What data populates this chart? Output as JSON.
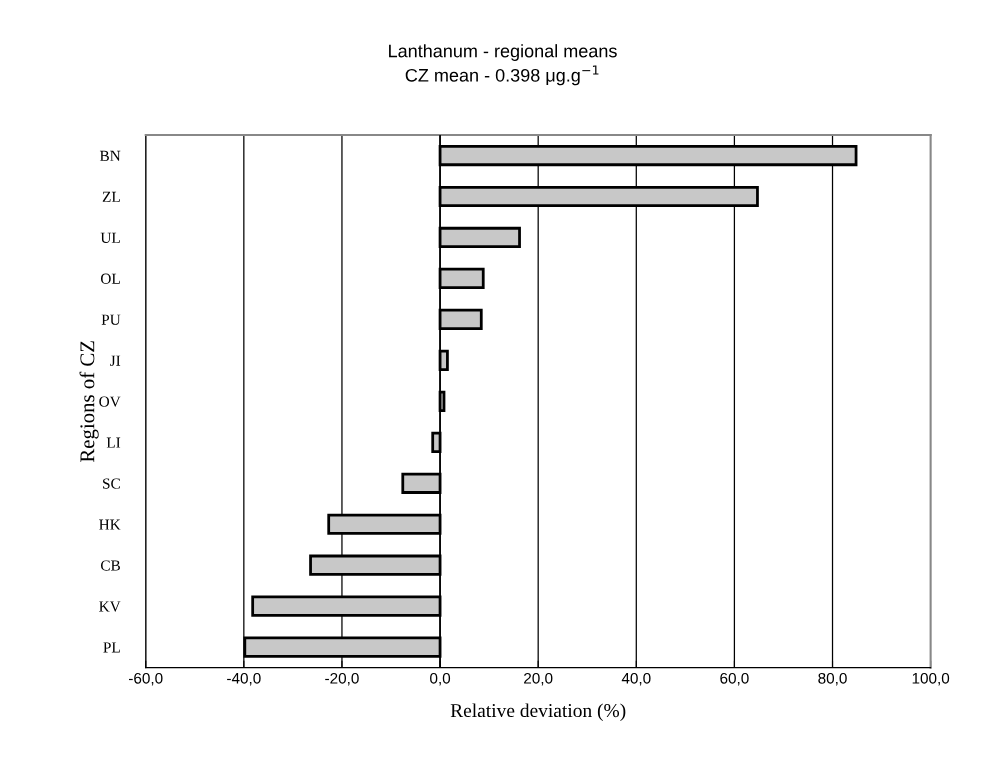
{
  "chart_data": {
    "type": "bar",
    "orientation": "horizontal",
    "title": "Lanthanum - regional means",
    "subtitle": "CZ mean - 0.398 μg.g$^{−1}$",
    "xlabel": "Relative deviation (%)",
    "ylabel": "Regions of CZ",
    "categories": [
      "BN",
      "ZL",
      "UL",
      "OL",
      "PU",
      "JI",
      "OV",
      "LI",
      "SC",
      "HK",
      "CB",
      "KV",
      "PL"
    ],
    "values": [
      84.8,
      64.7,
      16.2,
      8.8,
      8.4,
      1.5,
      0.8,
      -1.5,
      -7.6,
      -22.7,
      -26.4,
      -38.2,
      -39.8
    ],
    "color": "#c8c8c8",
    "xlim": [
      -60,
      100
    ],
    "xticks": [
      {
        "value": -60,
        "label": "-60,0"
      },
      {
        "value": -40,
        "label": "-40,0"
      },
      {
        "value": -20,
        "label": "-20,0"
      },
      {
        "value": 0,
        "label": "0,0"
      },
      {
        "value": 20,
        "label": "20,0"
      },
      {
        "value": 40,
        "label": "40,0"
      },
      {
        "value": 60,
        "label": "60,0"
      },
      {
        "value": 80,
        "label": "80,0"
      },
      {
        "value": 100,
        "label": "100,0"
      }
    ],
    "grid": "x"
  }
}
